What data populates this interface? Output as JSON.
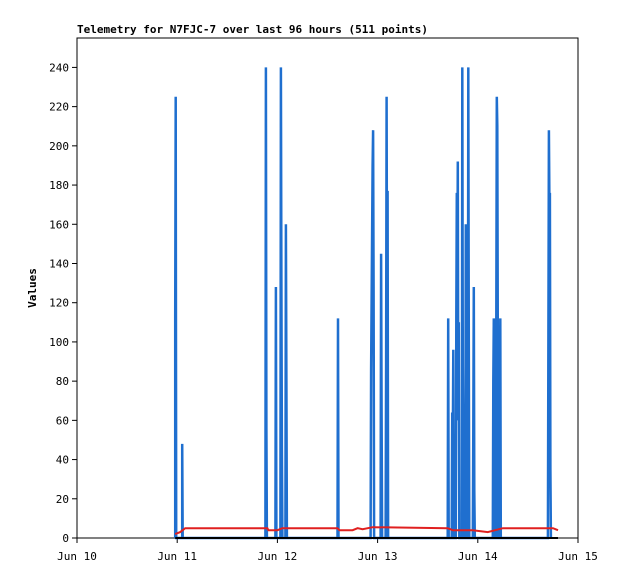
{
  "chart_data": {
    "type": "line",
    "title": "Telemetry for N7FJC-7 over last 96 hours (511 points)",
    "xlabel": "",
    "ylabel": "Values",
    "xlim": [
      "Jun 10",
      "Jun 15"
    ],
    "ylim": [
      0,
      255
    ],
    "x_ticks": [
      "Jun 10",
      "Jun 11",
      "Jun 12",
      "Jun 13",
      "Jun 14",
      "Jun 15"
    ],
    "y_ticks": [
      0,
      20,
      40,
      60,
      80,
      100,
      120,
      140,
      160,
      180,
      200,
      220,
      240
    ],
    "grid": false,
    "legend": "none",
    "colors": {
      "spikes": "#1f6fcf",
      "level": "#e02020",
      "baseline": "#000000"
    },
    "series": [
      {
        "x_unit": "days since Jun 10 00:00",
        "points": [
          [
            0.98,
            0
          ],
          [
            0.98,
            112
          ],
          [
            0.985,
            225
          ],
          [
            0.99,
            0
          ],
          [
            1.05,
            0
          ],
          [
            1.05,
            48
          ],
          [
            1.055,
            0
          ],
          [
            1.88,
            0
          ],
          [
            1.885,
            240
          ],
          [
            1.89,
            56
          ],
          [
            1.895,
            0
          ],
          [
            1.98,
            0
          ],
          [
            1.985,
            128
          ],
          [
            1.99,
            0
          ],
          [
            2.03,
            0
          ],
          [
            2.035,
            240
          ],
          [
            2.04,
            132
          ],
          [
            2.045,
            45
          ],
          [
            2.05,
            0
          ],
          [
            2.08,
            0
          ],
          [
            2.085,
            160
          ],
          [
            2.09,
            80
          ],
          [
            2.095,
            0
          ],
          [
            2.6,
            0
          ],
          [
            2.605,
            112
          ],
          [
            2.61,
            0
          ],
          [
            2.93,
            0
          ],
          [
            2.935,
            86
          ],
          [
            2.94,
            120
          ],
          [
            2.945,
            155
          ],
          [
            2.95,
            190
          ],
          [
            2.955,
            208
          ],
          [
            2.96,
            128
          ],
          [
            2.965,
            0
          ],
          [
            3.03,
            0
          ],
          [
            3.035,
            145
          ],
          [
            3.04,
            64
          ],
          [
            3.045,
            0
          ],
          [
            3.08,
            0
          ],
          [
            3.085,
            88
          ],
          [
            3.09,
            225
          ],
          [
            3.095,
            100
          ],
          [
            3.1,
            177
          ],
          [
            3.105,
            0
          ],
          [
            3.7,
            0
          ],
          [
            3.705,
            112
          ],
          [
            3.71,
            0
          ],
          [
            3.74,
            0
          ],
          [
            3.745,
            64
          ],
          [
            3.75,
            48
          ],
          [
            3.755,
            96
          ],
          [
            3.76,
            0
          ],
          [
            3.78,
            0
          ],
          [
            3.785,
            112
          ],
          [
            3.79,
            176
          ],
          [
            3.795,
            128
          ],
          [
            3.8,
            192
          ],
          [
            3.805,
            60
          ],
          [
            3.81,
            110
          ],
          [
            3.815,
            0
          ],
          [
            3.84,
            0
          ],
          [
            3.845,
            240
          ],
          [
            3.85,
            88
          ],
          [
            3.855,
            40
          ],
          [
            3.86,
            0
          ],
          [
            3.875,
            0
          ],
          [
            3.88,
            160
          ],
          [
            3.885,
            0
          ],
          [
            3.9,
            0
          ],
          [
            3.905,
            240
          ],
          [
            3.91,
            100
          ],
          [
            3.915,
            0
          ],
          [
            3.95,
            0
          ],
          [
            3.955,
            56
          ],
          [
            3.96,
            128
          ],
          [
            3.965,
            24
          ],
          [
            3.97,
            0
          ],
          [
            4.15,
            0
          ],
          [
            4.155,
            80
          ],
          [
            4.16,
            112
          ],
          [
            4.165,
            0
          ],
          [
            4.18,
            0
          ],
          [
            4.185,
            112
          ],
          [
            4.19,
            225
          ],
          [
            4.195,
            210
          ],
          [
            4.2,
            104
          ],
          [
            4.205,
            0
          ],
          [
            4.22,
            0
          ],
          [
            4.225,
            112
          ],
          [
            4.23,
            0
          ],
          [
            4.7,
            0
          ],
          [
            4.705,
            104
          ],
          [
            4.71,
            208
          ],
          [
            4.715,
            172
          ],
          [
            4.72,
            176
          ],
          [
            4.725,
            35
          ],
          [
            4.73,
            0
          ]
        ]
      },
      {
        "x_unit": "days since Jun 10 00:00",
        "points": [
          [
            0.98,
            2
          ],
          [
            1.03,
            3
          ],
          [
            1.08,
            5
          ],
          [
            1.9,
            5
          ],
          [
            1.91,
            4
          ],
          [
            2.0,
            4
          ],
          [
            2.05,
            5
          ],
          [
            2.6,
            5
          ],
          [
            2.62,
            4
          ],
          [
            2.75,
            4
          ],
          [
            2.8,
            5
          ],
          [
            2.85,
            4.5
          ],
          [
            2.95,
            5.5
          ],
          [
            3.7,
            5
          ],
          [
            3.75,
            4
          ],
          [
            3.95,
            4
          ],
          [
            4.1,
            3
          ],
          [
            4.25,
            5
          ],
          [
            4.75,
            5
          ],
          [
            4.8,
            4
          ]
        ]
      },
      {
        "x_unit": "days since Jun 10 00:00",
        "points": [
          [
            0.98,
            0
          ],
          [
            4.8,
            0
          ]
        ]
      }
    ]
  }
}
